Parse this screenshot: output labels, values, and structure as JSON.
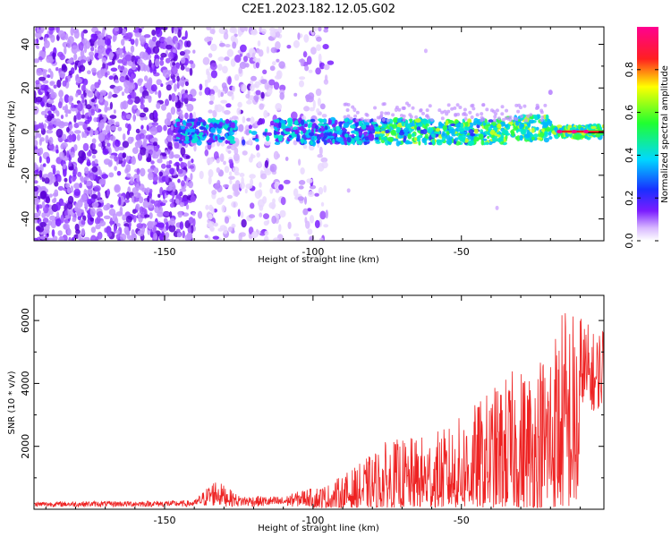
{
  "figure_title": "C2E1.2023.182.12.05.G02",
  "colors": {
    "snr_line": "#ee2222",
    "spectrum_core": "#4a00c8",
    "background": "#ffffff"
  },
  "chart_data": [
    {
      "type": "heatmap",
      "title": "",
      "xlabel": "Height of straight line (km)",
      "ylabel": "Frequency (Hz)",
      "xlim": [
        -194,
        -2
      ],
      "ylim": [
        -50,
        48
      ],
      "xticks": [
        -150,
        -100,
        -50
      ],
      "yticks": [
        -40,
        -20,
        0,
        20,
        40
      ],
      "colorbar": {
        "label": "Normalized spectral amplitude",
        "range": [
          0,
          1
        ],
        "ticks": [
          0.0,
          0.2,
          0.4,
          0.6,
          0.8
        ],
        "colormap": "rainbow (purple → blue → cyan → green → yellow → red → magenta)"
      },
      "description_values": {
        "signal_band_center_hz": 0,
        "signal_band_halfwidth_hz": 6,
        "signal_band_start_km": -145,
        "scatter_noise_end_km": -95
      }
    },
    {
      "type": "line",
      "title": "",
      "xlabel": "Height of straight line (km)",
      "ylabel": "SNR (10 * v/v)",
      "xlim": [
        -194,
        -2
      ],
      "ylim": [
        0,
        6800
      ],
      "xticks": [
        -150,
        -100,
        -50
      ],
      "yticks": [
        2000,
        4000,
        6000
      ],
      "series": [
        {
          "envelope_km": [
            -194,
            -140,
            -133,
            -125,
            -110,
            -103,
            -95,
            -85,
            -75,
            -65,
            -55,
            -45,
            -35,
            -25,
            -20,
            -15,
            -10,
            -5,
            -2
          ],
          "envelope_snr": [
            200,
            250,
            1100,
            450,
            400,
            700,
            800,
            1400,
            2200,
            2300,
            2600,
            3400,
            4300,
            4800,
            5700,
            6700,
            6300,
            5600,
            6200
          ]
        }
      ]
    }
  ]
}
